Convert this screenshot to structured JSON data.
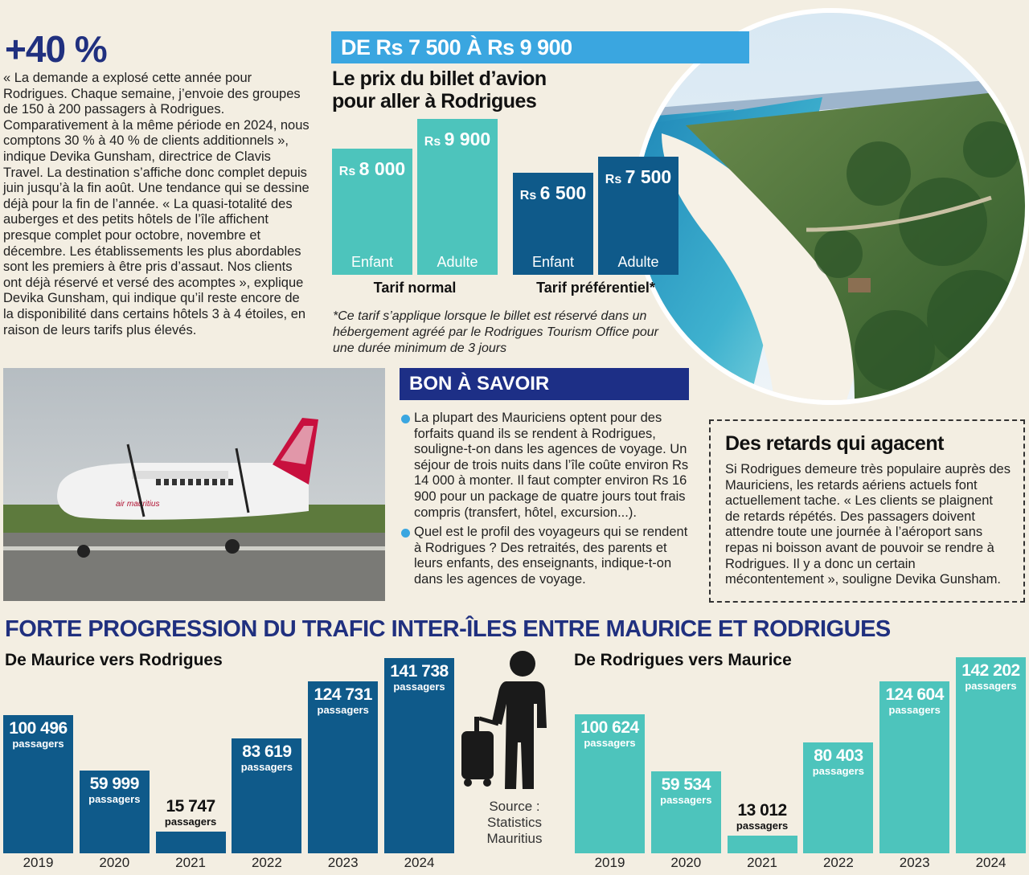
{
  "headline_stat": "+40 %",
  "intro_text": "« La demande a explosé cette année pour Rodrigues. Chaque semaine, j’envoie des groupes de 150 à 200 passagers à Rodrigues. Comparativement à la même période en 2024, nous comptons 30 % à 40 % de clients additionnels », indique Devika Gunsham, directrice de Clavis Travel. La destination s’affiche donc complet depuis juin jusqu’à la fin août. Une tendance qui se dessine déjà pour la fin de l’année. « La quasi-totalité des auberges et des petits hôtels de l’île affichent presque complet pour octobre, novembre et décembre. Les établissements les plus abordables sont les premiers à être pris d’assaut. Nos clients ont déjà réservé et versé des acomptes », explique Devika Gunsham, qui indique qu’il reste encore de la disponibilité dans certains hôtels 3 à 4 étoiles, en raison de leurs tarifs plus élevés.",
  "price_section": {
    "banner": "DE Rs 7 500 À Rs 9 900",
    "title_line1": "Le prix du billet d’avion",
    "title_line2": "pour aller à Rodrigues",
    "footnote": "*Ce tarif s’applique lorsque le billet est réservé dans un hébergement agréé par le Rodrigues Tourism Office pour une durée minimum de 3 jours"
  },
  "bon_a_savoir": {
    "title": "BON À SAVOIR",
    "items": [
      "La plupart des Mauriciens optent pour des forfaits quand ils se rendent à Rodrigues, souligne-t-on dans les agences de voyage. Un séjour de trois nuits dans l’île coûte environ Rs 14 000 à monter. Il faut compter environ Rs 16 900 pour un package de quatre jours tout frais compris (transfert, hôtel, excursion...).",
      "Quel est le profil des voyageurs qui se rendent à Rodrigues ? Des retraités, des parents et leurs enfants, des enseignants, indique-t-on dans les agences de voyage."
    ]
  },
  "retards": {
    "title": "Des retards qui agacent",
    "text": "Si Rodrigues demeure très populaire auprès des Mauriciens, les retards aériens actuels font actuellement tache. « Les clients se plaignent de retards répétés. Des passagers doivent attendre toute une journée à l’aéroport sans repas ni boisson avant de pouvoir se rendre à Rodrigues. Il y a donc un certain mécontentement », souligne Devika Gunsham."
  },
  "aircraft_livery": "air mauritius",
  "traffic_section": {
    "title": "FORTE PROGRESSION DU TRAFIC INTER-ÎLES ENTRE MAURICE ET RODRIGUES",
    "source_line1": "Source :",
    "source_line2": "Statistics",
    "source_line3": "Mauritius"
  },
  "colors": {
    "navy": "#1d2f86",
    "dark_blue": "#0f5a8a",
    "teal": "#4dc4bc",
    "accent": "#3aa6e0",
    "title_blue": "#20307f"
  },
  "chart_data": [
    {
      "type": "bar",
      "title": "Le prix du billet d’avion pour aller à Rodrigues",
      "unit": "Rs",
      "ylim": [
        0,
        9900
      ],
      "groups": [
        {
          "name": "Tarif normal",
          "color": "#4dc4bc",
          "categories": [
            "Enfant",
            "Adulte"
          ],
          "values": [
            8000,
            9900
          ],
          "labels": [
            "8 000",
            "9 900"
          ]
        },
        {
          "name": "Tarif préférentiel*",
          "color": "#0f5a8a",
          "categories": [
            "Enfant",
            "Adulte"
          ],
          "values": [
            6500,
            7500
          ],
          "labels": [
            "6 500",
            "7 500"
          ]
        }
      ]
    },
    {
      "type": "bar",
      "title": "De Maurice vers Rodrigues",
      "color": "#0f5a8a",
      "categories": [
        "2019",
        "2020",
        "2021",
        "2022",
        "2023",
        "2024"
      ],
      "values": [
        100496,
        59999,
        15747,
        83619,
        124731,
        141738
      ],
      "labels": [
        "100 496",
        "59 999",
        "15 747",
        "83 619",
        "124 731",
        "141 738"
      ],
      "unit_label": "passagers",
      "ylim": [
        0,
        142202
      ]
    },
    {
      "type": "bar",
      "title": "De Rodrigues vers Maurice",
      "color": "#4dc4bc",
      "categories": [
        "2019",
        "2020",
        "2021",
        "2022",
        "2023",
        "2024"
      ],
      "values": [
        100624,
        59534,
        13012,
        80403,
        124604,
        142202
      ],
      "labels": [
        "100 624",
        "59 534",
        "13 012",
        "80 403",
        "124 604",
        "142 202"
      ],
      "unit_label": "passagers",
      "ylim": [
        0,
        142202
      ]
    }
  ]
}
